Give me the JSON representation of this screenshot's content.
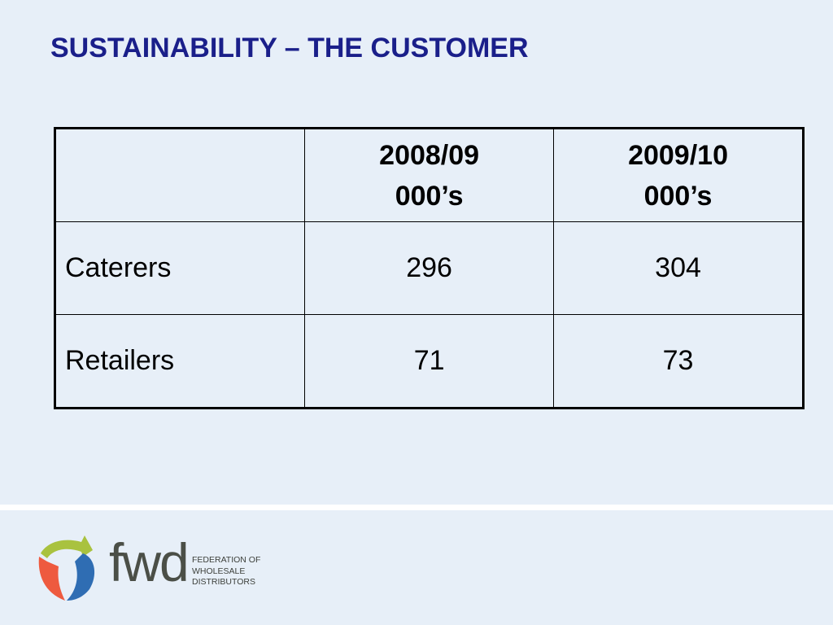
{
  "slide": {
    "title": "SUSTAINABILITY – THE CUSTOMER"
  },
  "table": {
    "headers": [
      {
        "line1": "",
        "line2": ""
      },
      {
        "line1": "2008/09",
        "line2": "000’s"
      },
      {
        "line1": "2009/10",
        "line2": "000’s"
      }
    ],
    "rows": [
      {
        "label": "Caterers",
        "values": [
          "296",
          "304"
        ]
      },
      {
        "label": "Retailers",
        "values": [
          "71",
          "73"
        ]
      }
    ]
  },
  "footer": {
    "logo_wordmark": "fwd",
    "logo_subtitle": [
      "FEDERATION OF",
      "WHOLESALE",
      "DISTRIBUTORS"
    ],
    "colors": {
      "title": "#1a1f8a",
      "background": "#e7eff8",
      "logo_green": "#a9c23f",
      "logo_blue": "#2f6db3",
      "logo_orange": "#ee5a3f"
    }
  }
}
